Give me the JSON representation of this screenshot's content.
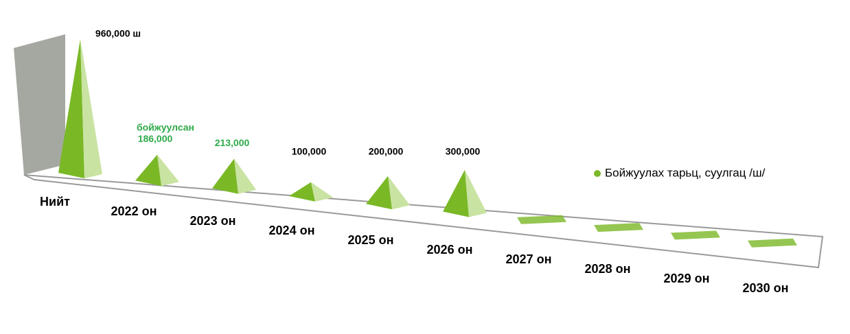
{
  "chart_data": {
    "type": "pyramid",
    "categories": [
      "Нийт",
      "2022 он",
      "2023 он",
      "2024 он",
      "2025 он",
      "2026 он",
      "2027 он",
      "2028 он",
      "2029 он",
      "2030 он"
    ],
    "series": [
      {
        "name": "Бойжуулах тарьц, суулгац /ш/",
        "color": "#7ab826",
        "values": [
          960000,
          186000,
          213000,
          100000,
          200000,
          300000,
          0,
          0,
          0,
          0
        ],
        "value_labels": [
          "960,000 ш",
          "186,000",
          "213,000",
          "100,000",
          "200,000",
          "300,000",
          null,
          null,
          null,
          null
        ]
      }
    ],
    "annotation": {
      "text": "бойжуулсан",
      "color": "#2eaa4a"
    },
    "legend": "right"
  }
}
